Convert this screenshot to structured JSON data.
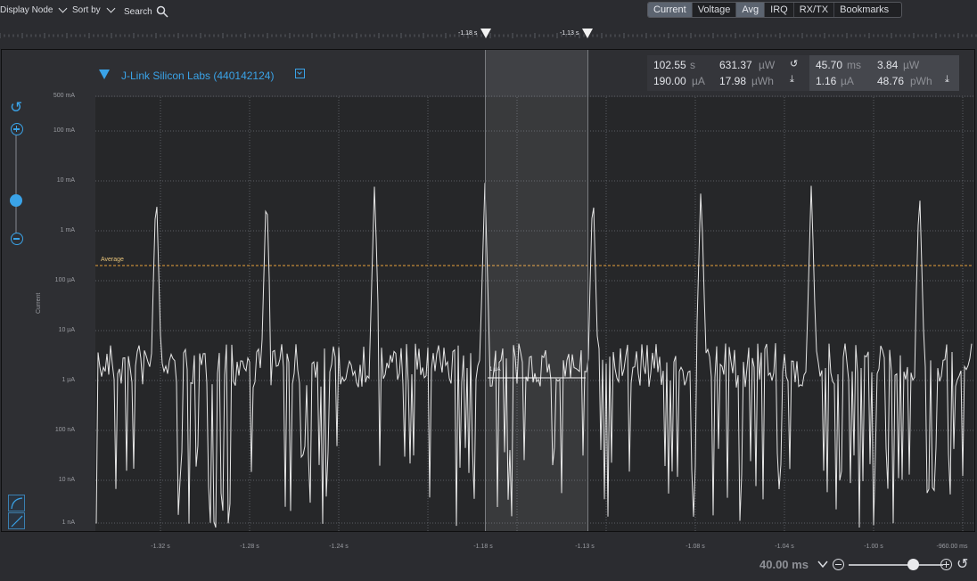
{
  "toolbar": {
    "display_node": "Display Node",
    "sort_by": "Sort by",
    "search": "Search"
  },
  "tabs": [
    "Current",
    "Voltage",
    "Avg",
    "IRQ",
    "RX/TX",
    "Bookmarks"
  ],
  "markers": {
    "left": "-1.18 s",
    "right": "-1.13 s"
  },
  "device": {
    "title": "J-Link Silicon Labs (440142124)"
  },
  "stats": {
    "total_time": {
      "value": "102.55",
      "unit": "s"
    },
    "total_current": {
      "value": "190.00",
      "unit": "µA"
    },
    "total_power": {
      "value": "631.37",
      "unit": "µW"
    },
    "total_energy": {
      "value": "17.98",
      "unit": "µWh"
    },
    "sel_time": {
      "value": "45.70",
      "unit": "ms"
    },
    "sel_current": {
      "value": "1.16",
      "unit": "µA"
    },
    "sel_power": {
      "value": "3.84",
      "unit": "µW"
    },
    "sel_energy": {
      "value": "48.76",
      "unit": "pWh"
    }
  },
  "axis": {
    "ylabel": "Current",
    "y_ticks": [
      "500 mA",
      "100 mA",
      "10 mA",
      "1 mA",
      "100 µA",
      "10 µA",
      "1 µA",
      "100 nA",
      "10 nA",
      "1 nA"
    ],
    "x_ticks": [
      "-1.32 s",
      "-1.28 s",
      "-1.24 s",
      "-1.18 s",
      "-1.13 s",
      "-1.08 s",
      "-1.04 s",
      "-1.00 s",
      "-960.00 ms"
    ]
  },
  "average_label": "Average",
  "selection_value": "1 µA",
  "zoom": {
    "value": "40.00 ms"
  },
  "colors": {
    "accent": "#3aa3e8",
    "average_line": "#e8a03a",
    "trace": "#e6e6e6"
  },
  "chart_data": {
    "type": "line",
    "scale": "log",
    "ylabel": "Current",
    "ylim": [
      "1 nA",
      "500 mA"
    ],
    "xlim": [
      -1.34,
      -0.95
    ],
    "pulse_peak": "10 mA",
    "pulse_times_s": [
      -1.313,
      -1.264,
      -1.216,
      -1.167,
      -1.119,
      -1.071,
      -1.022,
      -0.974
    ],
    "baseline_level": "~1 µA (noisy)",
    "average": "190.00 µA"
  }
}
